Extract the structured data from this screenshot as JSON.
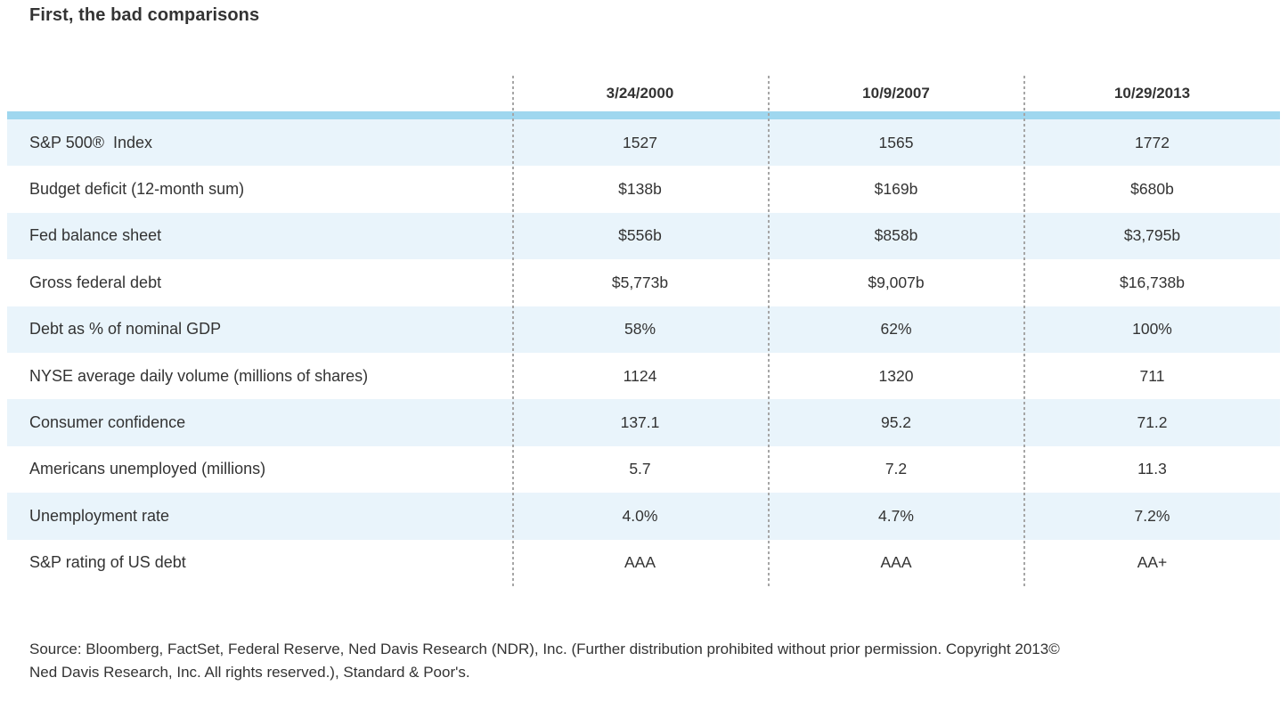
{
  "chart_data": {
    "type": "table",
    "title": "First, the bad comparisons",
    "categories": [
      "3/24/2000",
      "10/9/2007",
      "10/29/2013"
    ],
    "rows": [
      {
        "label": "S&P 500®  Index",
        "values": [
          "1527",
          "1565",
          "1772"
        ]
      },
      {
        "label": "Budget deficit (12-month sum)",
        "values": [
          "$138b",
          "$169b",
          "$680b"
        ]
      },
      {
        "label": "Fed balance sheet",
        "values": [
          "$556b",
          "$858b",
          "$3,795b"
        ]
      },
      {
        "label": "Gross federal debt",
        "values": [
          "$5,773b",
          "$9,007b",
          "$16,738b"
        ]
      },
      {
        "label": "Debt as % of nominal GDP",
        "values": [
          "58%",
          "62%",
          "100%"
        ]
      },
      {
        "label": "NYSE average daily volume (millions of shares)",
        "values": [
          "1124",
          "1320",
          "711"
        ]
      },
      {
        "label": "Consumer confidence",
        "values": [
          "137.1",
          "95.2",
          "71.2"
        ]
      },
      {
        "label": "Americans unemployed (millions)",
        "values": [
          "5.7",
          "7.2",
          "11.3"
        ]
      },
      {
        "label": "Unemployment rate",
        "values": [
          "4.0%",
          "4.7%",
          "7.2%"
        ]
      },
      {
        "label": "S&P rating of US debt",
        "values": [
          "AAA",
          "AAA",
          "AA+"
        ]
      }
    ],
    "layout": {
      "grid": "off",
      "column_dividers": "dotted",
      "row_striping": "alternating light blue"
    }
  },
  "source": {
    "lines": [
      "Source: Bloomberg, FactSet, Federal Reserve, Ned Davis Research (NDR), Inc. (Further distribution prohibited without prior permission. Copyright 2013©",
      "Ned Davis Research, Inc. All rights reserved.), Standard & Poor's."
    ]
  },
  "colors": {
    "accent_bar": "#9fd7ef",
    "row_alt_background": "#e9f4fb",
    "text": "#333333",
    "divider_dots": "#a6a6a6"
  }
}
